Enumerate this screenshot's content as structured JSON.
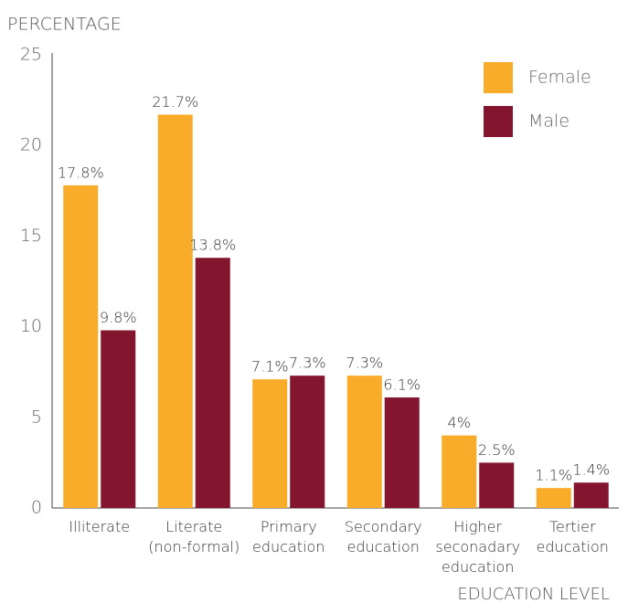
{
  "chart_data": {
    "type": "bar",
    "y_label": "PERCENTAGE",
    "x_label": "EDUCATION LEVEL",
    "categories": [
      "Illiterate",
      "Literate (non-formal)",
      "Primary education",
      "Secondary education",
      "Higher seconadary education",
      "Tertier education"
    ],
    "series": [
      {
        "name": "Female",
        "color": "#f9ac2a",
        "values": [
          17.8,
          21.7,
          7.1,
          7.3,
          4,
          1.1
        ],
        "value_labels": [
          "17.8%",
          "21.7%",
          "7.1%",
          "7.3%",
          "4%",
          "1.1%"
        ]
      },
      {
        "name": "Male",
        "color": "#84152e",
        "values": [
          9.8,
          13.8,
          7.3,
          6.1,
          2.5,
          1.4
        ],
        "value_labels": [
          "9.8%",
          "13.8%",
          "7.3%",
          "6.1%",
          "2.5%",
          "1.4%"
        ]
      }
    ],
    "ylim": [
      0,
      25
    ],
    "yticks": [
      0,
      5,
      10,
      15,
      20,
      25
    ],
    "grid": false,
    "legend": "upper right"
  }
}
